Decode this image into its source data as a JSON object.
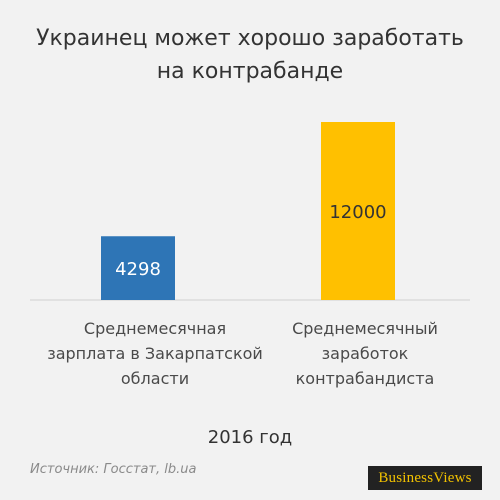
{
  "title_lines": [
    "Украинец может хорошо заработать",
    "на контрабанде"
  ],
  "chart_data": {
    "type": "bar",
    "categories": [
      [
        "Среднемесячная",
        "зарплата в Закарпатской",
        "области"
      ],
      [
        "Среднемесячный",
        "заработок",
        "контрабандиста"
      ]
    ],
    "values": [
      4298,
      12000
    ],
    "value_labels": [
      "4298",
      "12000"
    ],
    "colors": [
      "#2e75b6",
      "#ffc000"
    ],
    "xlabel": "2016 год",
    "ylabel": "",
    "ylim": [
      0,
      12000
    ],
    "grid": false,
    "legend": "none"
  },
  "source": "Источник: Госстат, lb.ua",
  "logo": "BusinessViews"
}
